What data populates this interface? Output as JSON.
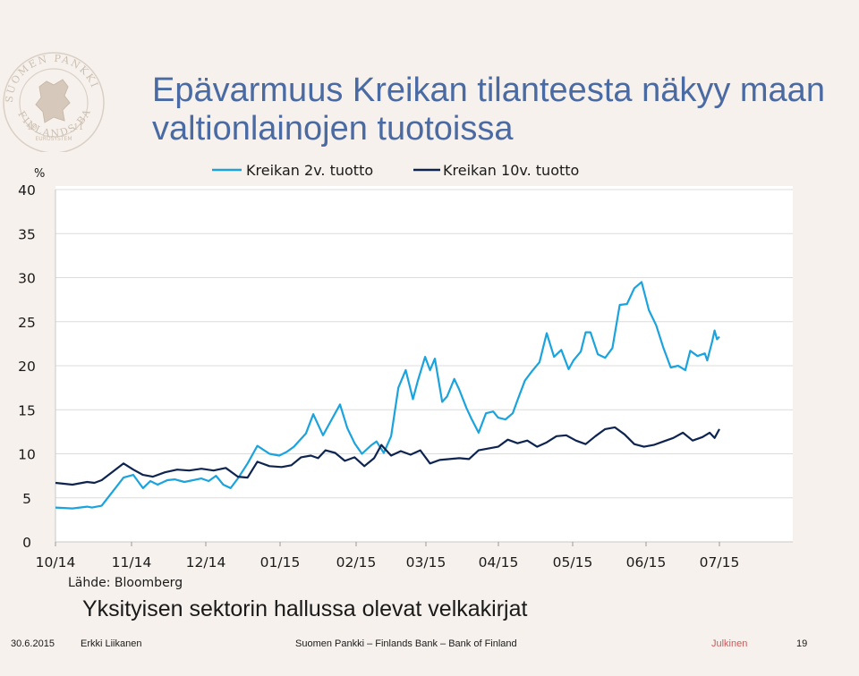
{
  "seal": {
    "ring_top": "SUOMEN PANKKI",
    "ring_bottom": "FINLANDS BANK",
    "year_left": "19",
    "year_right": "11",
    "band": "EUROSYSTEM"
  },
  "title": "Epävarmuus Kreikan tilanteesta näkyy maan valtionlainojen tuotoissa",
  "subtitle": "Yksityisen sektorin hallussa olevat velkakirjat",
  "footer": {
    "date": "30.6.2015",
    "author": "Erkki Liikanen",
    "org": "Suomen Pankki – Finlands Bank – Bank of Finland",
    "classification": "Julkinen",
    "page": "19"
  },
  "colors": {
    "series_2y": "#1aa3dd",
    "series_10y": "#0e2450",
    "title": "#4a6aa3",
    "classification": "#c85b5b"
  },
  "chart_data": {
    "type": "line",
    "unit": "%",
    "source": "Lähde: Bloomberg",
    "ylim": [
      0,
      40
    ],
    "yticks": [
      0,
      5,
      10,
      15,
      20,
      25,
      30,
      35,
      40
    ],
    "xticks": [
      "10/14",
      "11/14",
      "12/14",
      "01/15",
      "02/15",
      "03/15",
      "04/15",
      "05/15",
      "06/15",
      "07/15"
    ],
    "x_range": [
      "2014-10-01",
      "2015-07-01"
    ],
    "grid": true,
    "legend_position": "top",
    "series": [
      {
        "name": "Kreikan 2v. tuotto",
        "color": "#1aa3dd",
        "x": [
          "2014-10-01",
          "2014-10-08",
          "2014-10-14",
          "2014-10-16",
          "2014-10-20",
          "2014-10-29",
          "2014-11-02",
          "2014-11-06",
          "2014-11-09",
          "2014-11-12",
          "2014-11-16",
          "2014-11-19",
          "2014-11-23",
          "2014-11-30",
          "2014-12-03",
          "2014-12-06",
          "2014-12-09",
          "2014-12-12",
          "2014-12-15",
          "2014-12-19",
          "2014-12-23",
          "2014-12-28",
          "2015-01-01",
          "2015-01-04",
          "2015-01-07",
          "2015-01-12",
          "2015-01-15",
          "2015-01-19",
          "2015-01-22",
          "2015-01-26",
          "2015-01-29",
          "2015-02-01",
          "2015-02-04",
          "2015-02-08",
          "2015-02-10",
          "2015-02-13",
          "2015-02-16",
          "2015-02-19",
          "2015-02-22",
          "2015-02-25",
          "2015-02-27",
          "2015-03-02",
          "2015-03-04",
          "2015-03-06",
          "2015-03-09",
          "2015-03-11",
          "2015-03-14",
          "2015-03-16",
          "2015-03-19",
          "2015-03-21",
          "2015-03-24",
          "2015-03-27",
          "2015-03-30",
          "2015-04-01",
          "2015-04-04",
          "2015-04-07",
          "2015-04-09",
          "2015-04-12",
          "2015-04-15",
          "2015-04-18",
          "2015-04-21",
          "2015-04-24",
          "2015-04-27",
          "2015-04-30",
          "2015-05-02",
          "2015-05-05",
          "2015-05-07",
          "2015-05-09",
          "2015-05-12",
          "2015-05-15",
          "2015-05-18",
          "2015-05-21",
          "2015-05-24",
          "2015-05-27",
          "2015-05-30",
          "2015-06-02",
          "2015-06-05",
          "2015-06-08",
          "2015-06-11",
          "2015-06-14",
          "2015-06-17",
          "2015-06-19",
          "2015-06-22",
          "2015-06-25",
          "2015-06-26",
          "2015-06-28",
          "2015-06-29",
          "2015-06-30",
          "2015-07-01"
        ],
        "values": [
          3.9,
          3.8,
          4.0,
          3.9,
          4.1,
          7.3,
          7.6,
          6.1,
          6.9,
          6.5,
          7.0,
          7.1,
          6.8,
          7.2,
          6.9,
          7.5,
          6.5,
          6.1,
          7.2,
          8.9,
          10.9,
          10.0,
          9.8,
          10.2,
          10.8,
          12.3,
          14.5,
          12.1,
          13.6,
          15.6,
          12.9,
          11.2,
          10.0,
          11.0,
          11.4,
          10.1,
          12.0,
          17.5,
          19.5,
          16.2,
          18.3,
          21.0,
          19.5,
          20.8,
          15.9,
          16.5,
          18.5,
          17.3,
          15.2,
          14.0,
          12.4,
          14.6,
          14.8,
          14.1,
          13.9,
          14.6,
          16.1,
          18.3,
          19.4,
          20.4,
          23.7,
          21.0,
          21.8,
          19.6,
          20.6,
          21.6,
          23.8,
          23.8,
          21.3,
          20.9,
          22.0,
          26.9,
          27.0,
          28.8,
          29.5,
          26.3,
          24.6,
          22.0,
          19.8,
          20.0,
          19.5,
          21.7,
          21.1,
          21.4,
          20.6,
          22.7,
          24.0,
          23.0,
          23.3
        ],
        "values_note": "approximate, read from chart"
      },
      {
        "name": "Kreikan 10v. tuotto",
        "color": "#0e2450",
        "x": [
          "2014-10-01",
          "2014-10-08",
          "2014-10-14",
          "2014-10-17",
          "2014-10-20",
          "2014-10-29",
          "2014-11-02",
          "2014-11-06",
          "2014-11-10",
          "2014-11-15",
          "2014-11-20",
          "2014-11-25",
          "2014-11-30",
          "2014-12-05",
          "2014-12-10",
          "2014-12-15",
          "2014-12-19",
          "2014-12-23",
          "2014-12-28",
          "2015-01-02",
          "2015-01-06",
          "2015-01-10",
          "2015-01-14",
          "2015-01-17",
          "2015-01-20",
          "2015-01-24",
          "2015-01-28",
          "2015-02-01",
          "2015-02-05",
          "2015-02-09",
          "2015-02-12",
          "2015-02-16",
          "2015-02-20",
          "2015-02-24",
          "2015-02-28",
          "2015-03-04",
          "2015-03-08",
          "2015-03-12",
          "2015-03-16",
          "2015-03-20",
          "2015-03-24",
          "2015-03-28",
          "2015-04-01",
          "2015-04-05",
          "2015-04-09",
          "2015-04-13",
          "2015-04-17",
          "2015-04-21",
          "2015-04-25",
          "2015-04-29",
          "2015-05-03",
          "2015-05-07",
          "2015-05-11",
          "2015-05-15",
          "2015-05-19",
          "2015-05-23",
          "2015-05-27",
          "2015-05-31",
          "2015-06-04",
          "2015-06-08",
          "2015-06-12",
          "2015-06-16",
          "2015-06-20",
          "2015-06-24",
          "2015-06-27",
          "2015-06-29",
          "2015-07-01"
        ],
        "values": [
          6.7,
          6.5,
          6.8,
          6.7,
          7.0,
          8.9,
          8.2,
          7.6,
          7.4,
          7.9,
          8.2,
          8.1,
          8.3,
          8.1,
          8.4,
          7.4,
          7.3,
          9.1,
          8.6,
          8.5,
          8.7,
          9.6,
          9.8,
          9.5,
          10.4,
          10.1,
          9.2,
          9.6,
          8.6,
          9.5,
          11.0,
          9.8,
          10.3,
          9.9,
          10.4,
          8.9,
          9.3,
          9.4,
          9.5,
          9.4,
          10.4,
          10.6,
          10.8,
          11.6,
          11.2,
          11.5,
          10.8,
          11.3,
          12.0,
          12.1,
          11.5,
          11.1,
          12.0,
          12.8,
          13.0,
          12.2,
          11.1,
          10.8,
          11.0,
          11.4,
          11.8,
          12.4,
          11.5,
          11.9,
          12.4,
          11.8,
          12.8
        ],
        "values_note": "approximate, read from chart"
      }
    ]
  }
}
